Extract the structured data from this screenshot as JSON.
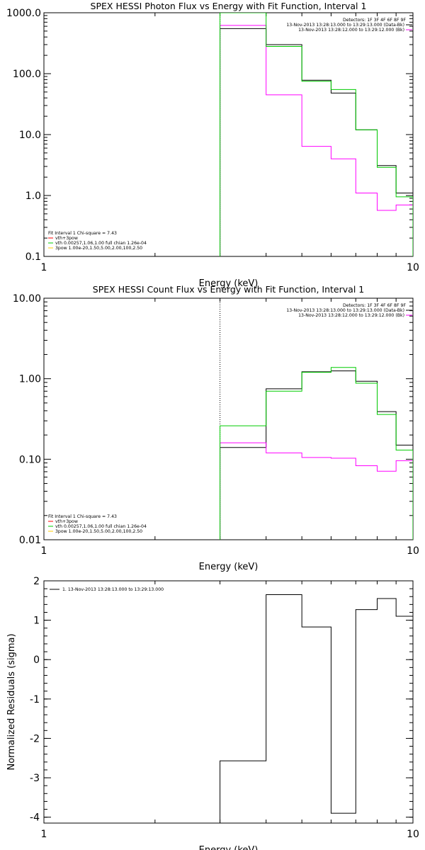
{
  "chart_data": [
    {
      "type": "line",
      "title": "SPEX HESSI Photon Flux vs Energy with Fit Function, Interval 1",
      "xlabel": "Energy (keV)",
      "ylabel": "",
      "xscale": "log",
      "yscale": "log",
      "xlim": [
        1,
        10
      ],
      "ylim": [
        0.1,
        1000
      ],
      "x_ticks": [
        "1",
        "10"
      ],
      "y_ticks": [
        "0.1",
        "1.0",
        "10.0",
        "100.0",
        "1000.0"
      ],
      "vline": {
        "x": 3.0,
        "style": "dotted",
        "color": "#00cc00"
      },
      "legend_top_right": {
        "header": "Detectors: 1F 3F 4F 6F 8F 9F",
        "entries": [
          {
            "label": "13-Nov-2013 13:28:13.000 to 13:29:13.000 (Data-Bk)",
            "color": "#000000"
          },
          {
            "label": "13-Nov-2013 13:28:12.000 to 13:29:12.000 (Bk)",
            "color": "#ff00ff"
          }
        ]
      },
      "legend_bottom_left": {
        "header": "Fit Interval 1   Chi-square = 7.43",
        "entries": [
          {
            "label": "vth+3pow",
            "color": "#ff0000"
          },
          {
            "label": "vth 0.00257,1.06,1.00  full chian 1.26e-04",
            "color": "#00cc00"
          },
          {
            "label": "3pow 1.00e-20,1.50,5.00,2.00,100,2.50",
            "color": "#ffcc00"
          }
        ]
      },
      "bin_edges": [
        3.0,
        4.0,
        5.0,
        6.0,
        7.0,
        8.0,
        9.0,
        10.0
      ],
      "series": [
        {
          "name": "13-Nov-2013 13:28:13.000 to 13:29:13.000 (Data-Bk)",
          "color": "#000000",
          "values": [
            550,
            300,
            78,
            48,
            12,
            3.1,
            1.1
          ]
        },
        {
          "name": "13-Nov-2013 13:28:12.000 to 13:29:12.000 (Bk)",
          "color": "#ff00ff",
          "values": [
            620,
            45,
            6.4,
            4.0,
            1.1,
            0.57,
            0.7
          ]
        },
        {
          "name": "vth+3pow",
          "color": "#00cc00",
          "values": [
            1000,
            280,
            75,
            55,
            12,
            2.9,
            0.95
          ]
        }
      ]
    },
    {
      "type": "line",
      "title": "SPEX HESSI Count Flux vs Energy with Fit Function, Interval 1",
      "xlabel": "Energy (keV)",
      "ylabel": "",
      "xscale": "log",
      "yscale": "log",
      "xlim": [
        1,
        10
      ],
      "ylim": [
        0.01,
        10
      ],
      "x_ticks": [
        "1",
        "10"
      ],
      "y_ticks": [
        "0.01",
        "0.10",
        "1.00",
        "10.00"
      ],
      "vline": {
        "x": 3.0,
        "style": "dotted",
        "color": "#00cc00"
      },
      "legend_top_right": {
        "header": "Detectors: 1F 3F 4F 6F 8F 9F",
        "entries": [
          {
            "label": "13-Nov-2013 13:28:13.000 to 13:29:13.000 (Data-Bk)",
            "color": "#000000"
          },
          {
            "label": "13-Nov-2013 13:28:12.000 to 13:29:12.000 (Bk)",
            "color": "#ff00ff"
          }
        ]
      },
      "legend_bottom_left": {
        "header": "Fit Interval 1   Chi-square = 7.43",
        "entries": [
          {
            "label": "vth+3pow",
            "color": "#ff0000"
          },
          {
            "label": "vth 0.00257,1.06,1.00  full chian 1.26e-04",
            "color": "#00cc00"
          },
          {
            "label": "3pow 1.00e-20,1.50,5.00,2.00,100,2.50",
            "color": "#ffcc00"
          }
        ]
      },
      "bin_edges": [
        3.0,
        4.0,
        5.0,
        6.0,
        7.0,
        8.0,
        9.0,
        10.0
      ],
      "series": [
        {
          "name": "13-Nov-2013 13:28:13.000 to 13:29:13.000 (Data-Bk)",
          "color": "#000000",
          "values": [
            0.14,
            0.75,
            1.22,
            1.25,
            0.93,
            0.39,
            0.15
          ]
        },
        {
          "name": "13-Nov-2013 13:28:12.000 to 13:29:12.000 (Bk)",
          "color": "#ff00ff",
          "values": [
            0.16,
            0.12,
            0.105,
            0.103,
            0.083,
            0.071,
            0.096
          ]
        },
        {
          "name": "vth+3pow",
          "color": "#00cc00",
          "values": [
            0.26,
            0.7,
            1.2,
            1.38,
            0.88,
            0.36,
            0.13
          ]
        }
      ]
    },
    {
      "type": "line",
      "title": "",
      "xlabel": "Energy (keV)",
      "ylabel": "Normalized Residuals (sigma)",
      "xscale": "log",
      "yscale": "linear",
      "xlim": [
        1,
        10
      ],
      "ylim": [
        -4.15,
        2.0
      ],
      "x_ticks": [
        "1",
        "10"
      ],
      "y_ticks": [
        "-4",
        "-3",
        "-2",
        "-1",
        "0",
        "1",
        "2"
      ],
      "legend_top_left": {
        "entries": [
          {
            "label": "1. 13-Nov-2013 13:28:13.000 to 13:29:13.000",
            "color": "#000000"
          }
        ]
      },
      "bin_edges": [
        3.0,
        4.0,
        5.0,
        6.0,
        7.0,
        8.0,
        9.0,
        10.0
      ],
      "series": [
        {
          "name": "1. 13-Nov-2013 13:28:13.000 to 13:29:13.000",
          "color": "#000000",
          "values": [
            -2.57,
            1.65,
            0.83,
            -3.9,
            1.27,
            1.55,
            1.1
          ]
        }
      ]
    }
  ]
}
